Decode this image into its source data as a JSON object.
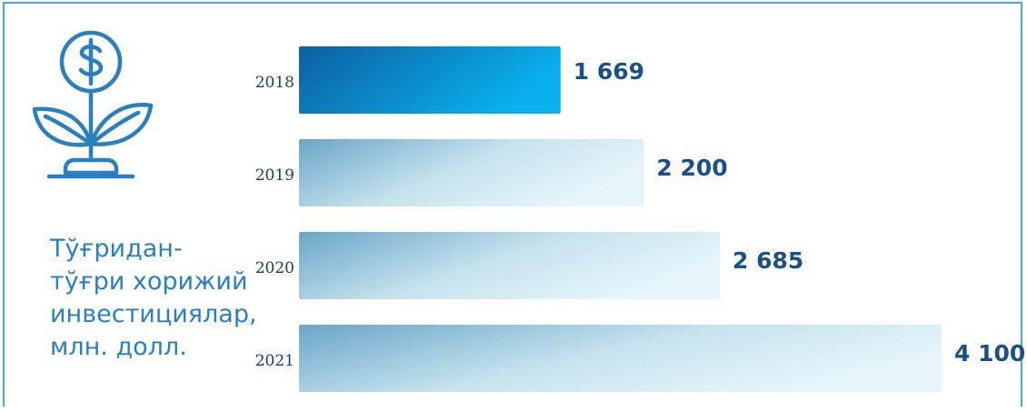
{
  "caption": "Тўғридан-\nтўғри хорижий\nинвестициялар,\nмлн. долл.",
  "icon": "dollar-plant-icon",
  "colors": {
    "frame": "#4aa8dc",
    "accent": "#2a7fc0",
    "bar_2018_start": "#0d5fa0",
    "bar_2018_end": "#0ab0ee",
    "bar_light_start": "#6aa6c8",
    "bar_light_end": "#e2f3f9",
    "value_text": "#1b4f8a"
  },
  "chart_data": {
    "type": "bar",
    "orientation": "horizontal",
    "categories": [
      "2018",
      "2019",
      "2020",
      "2021"
    ],
    "values": [
      1669,
      2200,
      2685,
      4100
    ],
    "value_labels": [
      "1 669",
      "2 200",
      "2 685",
      "4 100"
    ],
    "xlim": [
      0,
      4100
    ],
    "grid": false,
    "legend": "none"
  }
}
